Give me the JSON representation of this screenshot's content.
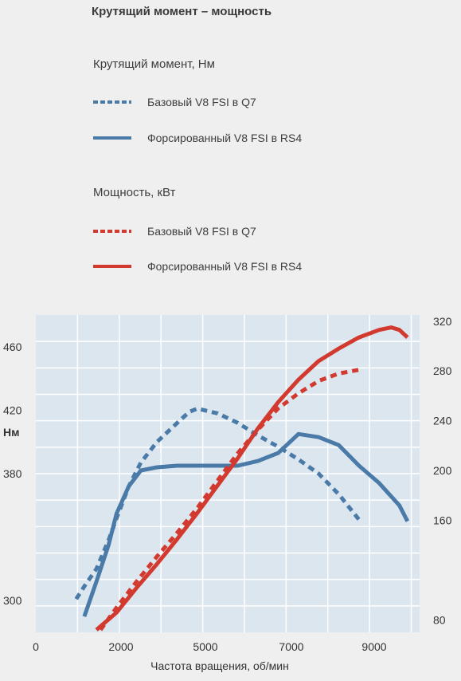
{
  "title": "Крутящий момент – мощность",
  "torque_group": {
    "heading": "Крутящий момент, Нм",
    "items": [
      {
        "label": "Базовый V8 FSI в Q7",
        "color": "#4a7aa7",
        "style": "dotted"
      },
      {
        "label": "Форсированный V8 FSI в RS4",
        "color": "#4a7aa7",
        "style": "solid"
      }
    ]
  },
  "power_group": {
    "heading": "Мощность, кВт",
    "items": [
      {
        "label": "Базовый V8 FSI в Q7",
        "color": "#d23a30",
        "style": "dotted"
      },
      {
        "label": "Форсированный V8 FSI в RS4",
        "color": "#d23a30",
        "style": "solid"
      }
    ]
  },
  "chart_data": {
    "type": "line",
    "xlabel": "Частота вращения, об/мин",
    "x_ticks": [
      "0",
      "2000",
      "5000",
      "7000",
      "9000"
    ],
    "left_axis": {
      "unit_label": "Нм",
      "ticks": [
        460,
        420,
        380,
        300
      ],
      "range": [
        280,
        480
      ]
    },
    "right_axis": {
      "ticks": [
        320,
        280,
        240,
        200,
        160,
        80
      ],
      "range": [
        70,
        325
      ]
    },
    "grid": true,
    "series": [
      {
        "axis": "left",
        "style": "dotted",
        "color": "#4a7aa7",
        "x": [
          1000,
          1200,
          1500,
          1800,
          2000,
          2300,
          2600,
          3000,
          3500,
          3800,
          4000,
          4500,
          5000,
          5500,
          6000,
          6500,
          7000,
          7500,
          8000
        ],
        "y": [
          301,
          309,
          320,
          338,
          352,
          372,
          387,
          400,
          412,
          419,
          421,
          418,
          412,
          404,
          397,
          389,
          380,
          367,
          351
        ]
      },
      {
        "axis": "left",
        "style": "solid",
        "color": "#4a7aa7",
        "x": [
          1200,
          1500,
          1800,
          2000,
          2300,
          2600,
          3000,
          3500,
          4000,
          4500,
          5000,
          5500,
          6000,
          6500,
          7000,
          7500,
          8000,
          8500,
          9000,
          9200
        ],
        "y": [
          290,
          312,
          335,
          355,
          372,
          382,
          384,
          385,
          385,
          385,
          385,
          388,
          393,
          405,
          403,
          398,
          385,
          374,
          360,
          350
        ]
      },
      {
        "axis": "right",
        "style": "dotted",
        "color": "#d23a30",
        "x": [
          1600,
          2000,
          2500,
          3000,
          3500,
          4000,
          4500,
          5000,
          5500,
          6000,
          6500,
          7000,
          7500,
          8000
        ],
        "y": [
          72,
          90,
          111,
          131,
          150,
          170,
          192,
          214,
          233,
          250,
          262,
          272,
          278,
          281
        ]
      },
      {
        "axis": "right",
        "style": "solid",
        "color": "#d23a30",
        "x": [
          1500,
          2000,
          2500,
          3000,
          3500,
          4000,
          4500,
          5000,
          5500,
          6000,
          6500,
          7000,
          7500,
          8000,
          8500,
          8800,
          9000,
          9200
        ],
        "y": [
          72,
          86,
          106,
          125,
          145,
          166,
          188,
          210,
          234,
          255,
          273,
          288,
          298,
          307,
          313,
          315,
          313,
          307
        ]
      }
    ]
  }
}
